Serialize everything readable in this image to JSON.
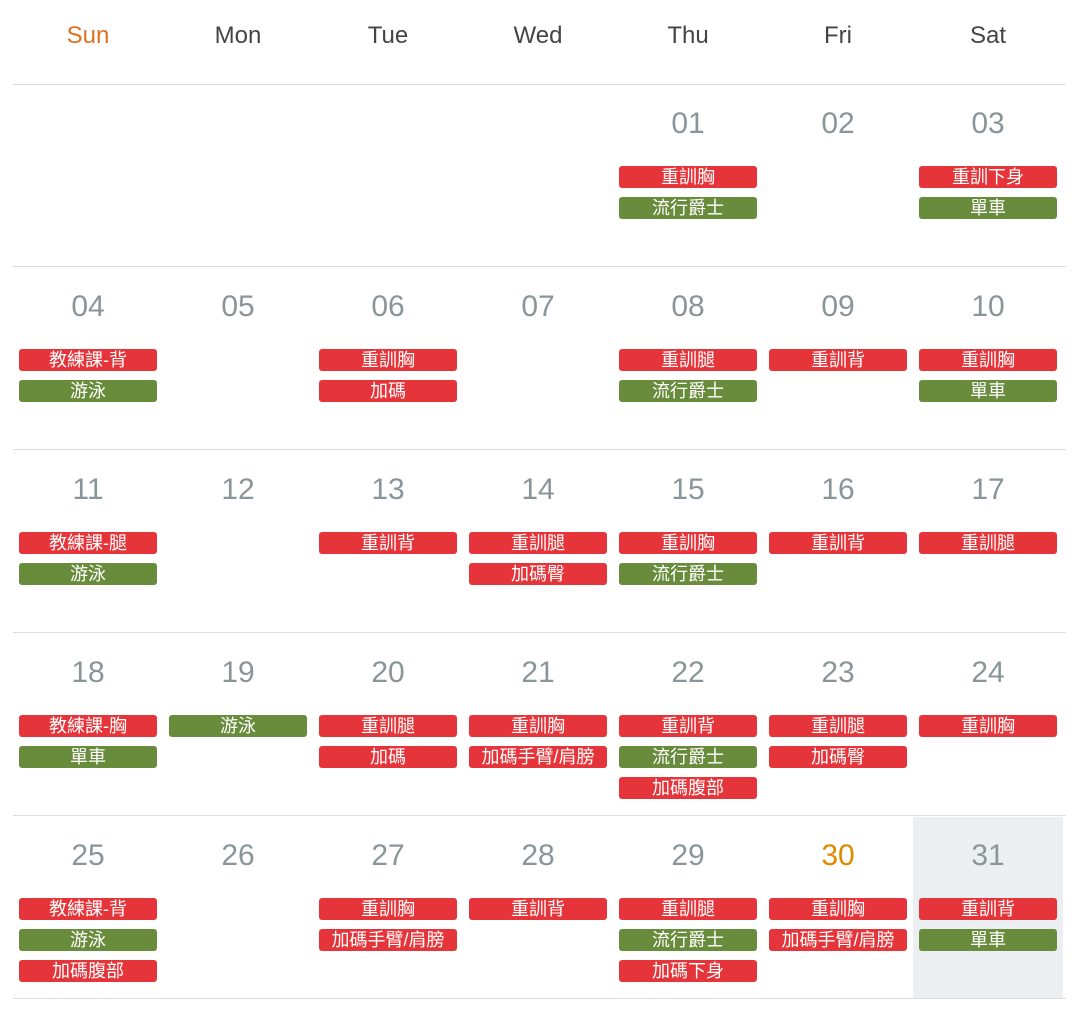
{
  "weekdays": [
    {
      "label": "Sun",
      "color": "#e0701e"
    },
    {
      "label": "Mon",
      "color": "#444444"
    },
    {
      "label": "Tue",
      "color": "#444444"
    },
    {
      "label": "Wed",
      "color": "#444444"
    },
    {
      "label": "Thu",
      "color": "#444444"
    },
    {
      "label": "Fri",
      "color": "#444444"
    },
    {
      "label": "Sat",
      "color": "#444444"
    }
  ],
  "weeks": [
    [
      null,
      null,
      null,
      null,
      {
        "day": "01",
        "events": [
          {
            "label": "重訓胸",
            "color": "#e5353a"
          },
          {
            "label": "流行爵士",
            "color": "#688c3c"
          }
        ]
      },
      {
        "day": "02",
        "events": []
      },
      {
        "day": "03",
        "events": [
          {
            "label": "重訓下身",
            "color": "#e5353a"
          },
          {
            "label": "單車",
            "color": "#688c3c"
          }
        ]
      }
    ],
    [
      {
        "day": "04",
        "events": [
          {
            "label": "教練課-背",
            "color": "#e5353a"
          },
          {
            "label": "游泳",
            "color": "#688c3c"
          }
        ]
      },
      {
        "day": "05",
        "events": []
      },
      {
        "day": "06",
        "events": [
          {
            "label": "重訓胸",
            "color": "#e5353a"
          },
          {
            "label": "加碼",
            "color": "#e5353a"
          }
        ]
      },
      {
        "day": "07",
        "events": []
      },
      {
        "day": "08",
        "events": [
          {
            "label": "重訓腿",
            "color": "#e5353a"
          },
          {
            "label": "流行爵士",
            "color": "#688c3c"
          }
        ]
      },
      {
        "day": "09",
        "events": [
          {
            "label": "重訓背",
            "color": "#e5353a"
          }
        ]
      },
      {
        "day": "10",
        "events": [
          {
            "label": "重訓胸",
            "color": "#e5353a"
          },
          {
            "label": "單車",
            "color": "#688c3c"
          }
        ]
      }
    ],
    [
      {
        "day": "11",
        "events": [
          {
            "label": "教練課-腿",
            "color": "#e5353a"
          },
          {
            "label": "游泳",
            "color": "#688c3c"
          }
        ]
      },
      {
        "day": "12",
        "events": []
      },
      {
        "day": "13",
        "events": [
          {
            "label": "重訓背",
            "color": "#e5353a"
          }
        ]
      },
      {
        "day": "14",
        "events": [
          {
            "label": "重訓腿",
            "color": "#e5353a"
          },
          {
            "label": "加碼臀",
            "color": "#e5353a"
          }
        ]
      },
      {
        "day": "15",
        "events": [
          {
            "label": "重訓胸",
            "color": "#e5353a"
          },
          {
            "label": "流行爵士",
            "color": "#688c3c"
          }
        ]
      },
      {
        "day": "16",
        "events": [
          {
            "label": "重訓背",
            "color": "#e5353a"
          }
        ]
      },
      {
        "day": "17",
        "events": [
          {
            "label": "重訓腿",
            "color": "#e5353a"
          }
        ]
      }
    ],
    [
      {
        "day": "18",
        "events": [
          {
            "label": "教練課-胸",
            "color": "#e5353a"
          },
          {
            "label": "單車",
            "color": "#688c3c"
          }
        ]
      },
      {
        "day": "19",
        "events": [
          {
            "label": "游泳",
            "color": "#688c3c"
          }
        ]
      },
      {
        "day": "20",
        "events": [
          {
            "label": "重訓腿",
            "color": "#e5353a"
          },
          {
            "label": "加碼",
            "color": "#e5353a"
          }
        ]
      },
      {
        "day": "21",
        "events": [
          {
            "label": "重訓胸",
            "color": "#e5353a"
          },
          {
            "label": "加碼手臂/肩膀",
            "color": "#e5353a"
          }
        ]
      },
      {
        "day": "22",
        "events": [
          {
            "label": "重訓背",
            "color": "#e5353a"
          },
          {
            "label": "流行爵士",
            "color": "#688c3c"
          },
          {
            "label": "加碼腹部",
            "color": "#e5353a"
          }
        ]
      },
      {
        "day": "23",
        "events": [
          {
            "label": "重訓腿",
            "color": "#e5353a"
          },
          {
            "label": "加碼臀",
            "color": "#e5353a"
          }
        ]
      },
      {
        "day": "24",
        "events": [
          {
            "label": "重訓胸",
            "color": "#e5353a"
          }
        ]
      }
    ],
    [
      {
        "day": "25",
        "events": [
          {
            "label": "教練課-背",
            "color": "#e5353a"
          },
          {
            "label": "游泳",
            "color": "#688c3c"
          },
          {
            "label": "加碼腹部",
            "color": "#e5353a"
          }
        ]
      },
      {
        "day": "26",
        "events": []
      },
      {
        "day": "27",
        "events": [
          {
            "label": "重訓胸",
            "color": "#e5353a"
          },
          {
            "label": "加碼手臂/肩膀",
            "color": "#e5353a"
          }
        ]
      },
      {
        "day": "28",
        "events": [
          {
            "label": "重訓背",
            "color": "#e5353a"
          }
        ]
      },
      {
        "day": "29",
        "events": [
          {
            "label": "重訓腿",
            "color": "#e5353a"
          },
          {
            "label": "流行爵士",
            "color": "#688c3c"
          },
          {
            "label": "加碼下身",
            "color": "#e5353a"
          }
        ]
      },
      {
        "day": "30",
        "day_color": "#e08a00",
        "events": [
          {
            "label": "重訓胸",
            "color": "#e5353a"
          },
          {
            "label": "加碼手臂/肩膀",
            "color": "#e5353a"
          }
        ]
      },
      {
        "day": "31",
        "background": "#eceff1",
        "events": [
          {
            "label": "重訓背",
            "color": "#e5353a"
          },
          {
            "label": "單車",
            "color": "#688c3c"
          }
        ]
      }
    ]
  ]
}
